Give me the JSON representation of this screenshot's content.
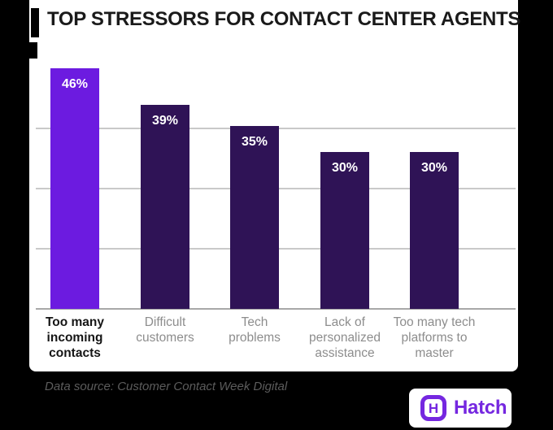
{
  "title": "TOP STRESSORS FOR CONTACT CENTER AGENTS",
  "chart_data": {
    "type": "bar",
    "title": "TOP STRESSORS FOR CONTACT CENTER AGENTS",
    "categories": [
      "Too many incoming contacts",
      "Difficult customers",
      "Tech problems",
      "Lack of personalized assistance",
      "Too many tech platforms to master"
    ],
    "category_lines": [
      [
        "Too many",
        "incoming",
        "contacts"
      ],
      [
        "Difficult",
        "customers"
      ],
      [
        "Tech",
        "problems"
      ],
      [
        "Lack of",
        "personalized",
        "assistance"
      ],
      [
        "Too many tech",
        "platforms to",
        "master"
      ]
    ],
    "values": [
      46,
      39,
      35,
      30,
      30
    ],
    "value_labels": [
      "46%",
      "39%",
      "35%",
      "30%",
      "30%"
    ],
    "unit": "%",
    "highlight_index": 0,
    "xlabel": "",
    "ylabel": "",
    "ylim": [
      0,
      46
    ],
    "grid": true,
    "legend": false
  },
  "colors": {
    "background": "#000000",
    "card": "#ffffff",
    "bar_highlight": "#6c1be0",
    "bar_default": "#2f1356",
    "title": "#1a1a1a",
    "category_label": "#8d8d8d",
    "category_label_highlight": "#151515",
    "gridline": "#c9c9c9",
    "axis": "#a8a8a8",
    "footer_text": "#5c5c5c",
    "brand_purple": "#7527e0"
  },
  "footer": {
    "source": "Data source: Customer Contact Week Digital"
  },
  "logo": {
    "text": "Hatch",
    "icon_letter": "H"
  }
}
